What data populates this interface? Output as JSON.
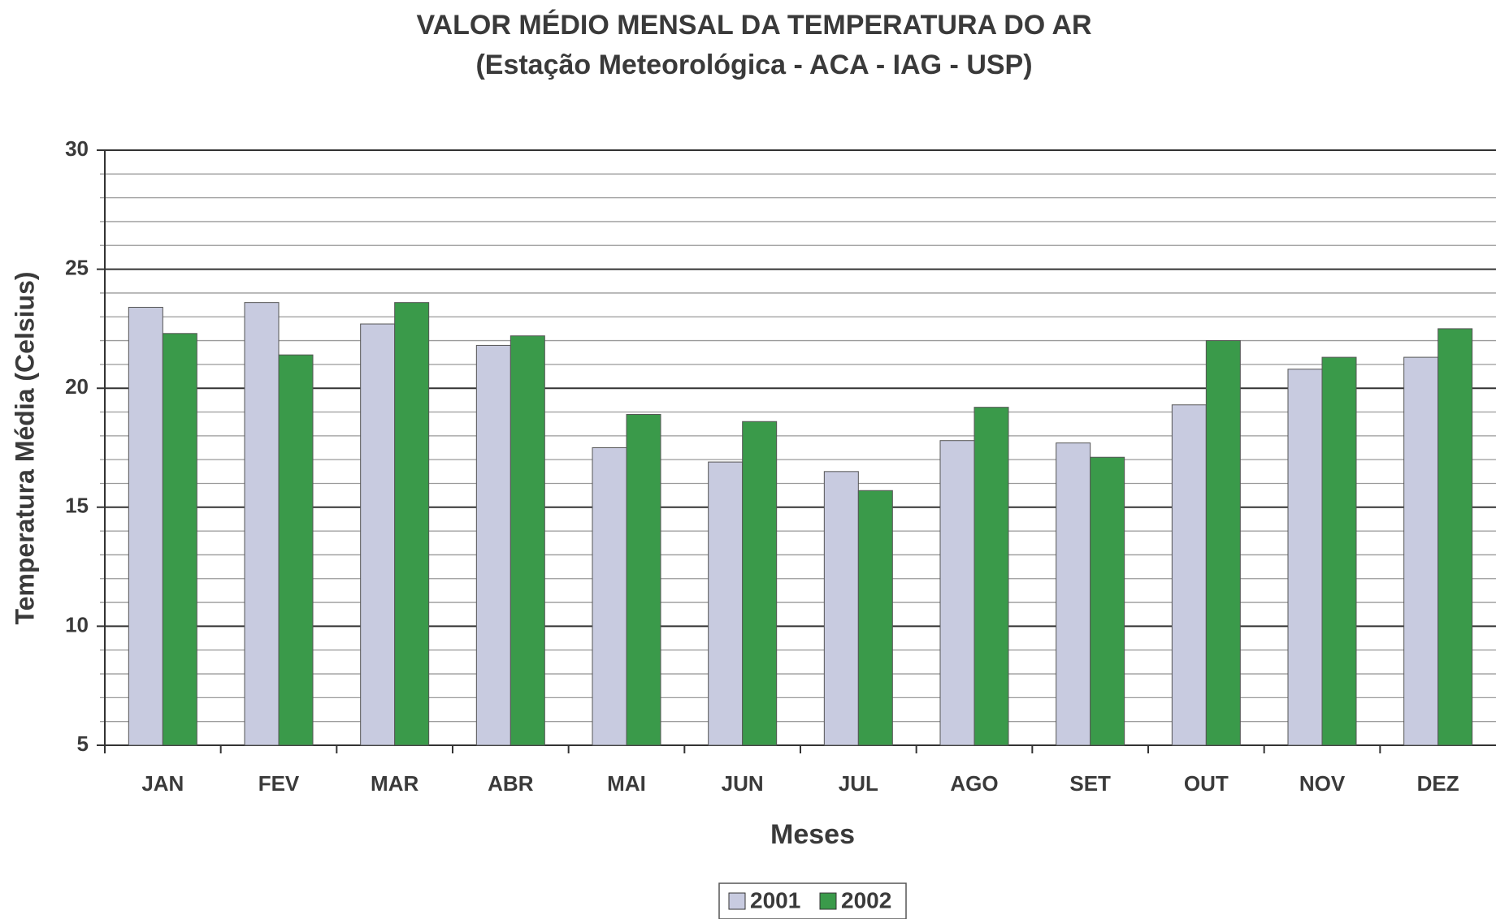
{
  "chart_data": {
    "type": "bar",
    "title": "VALOR MÉDIO MENSAL DA TEMPERATURA DO AR",
    "subtitle": "(Estação Meteorológica - ACA - IAG - USP)",
    "x_label": "Meses",
    "y_label": "Temperatura Média (Celsius)",
    "categories": [
      "JAN",
      "FEV",
      "MAR",
      "ABR",
      "MAI",
      "JUN",
      "JUL",
      "AGO",
      "SET",
      "OUT",
      "NOV",
      "DEZ"
    ],
    "series": [
      {
        "name": "2001",
        "color": "#c8cbe0",
        "values": [
          23.4,
          23.6,
          22.7,
          21.8,
          17.5,
          16.9,
          16.5,
          17.8,
          17.7,
          19.3,
          20.8,
          21.3
        ]
      },
      {
        "name": "2002",
        "color": "#3a9a4a",
        "values": [
          22.3,
          21.4,
          23.6,
          22.2,
          18.9,
          18.6,
          15.7,
          19.2,
          17.1,
          22.0,
          21.3,
          22.5
        ]
      }
    ],
    "ylim": [
      5,
      30
    ],
    "yticks": [
      5,
      10,
      15,
      20,
      25,
      30
    ],
    "minor_yticks": [
      6,
      7,
      8,
      9,
      11,
      12,
      13,
      14,
      16,
      17,
      18,
      19,
      21,
      22,
      23,
      24,
      26,
      27,
      28,
      29
    ],
    "grid": true,
    "legend": "bottom"
  }
}
